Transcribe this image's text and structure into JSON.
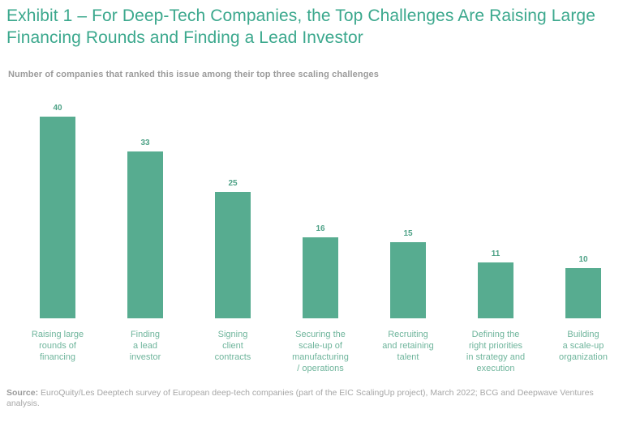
{
  "page": {
    "title": "Exhibit 1 – For Deep-Tech Companies, the Top Challenges Are Raising Large Financing Rounds and Finding a Lead Investor",
    "subtitle": "Number of companies that ranked this issue among their top three scaling challenges",
    "source_label": "Source:",
    "source_text": " EuroQuity/Les Deeptech survey of European deep-tech companies (part of the EIC ScalingUp project), March 2022; BCG and Deepwave Ventures analysis."
  },
  "colors": {
    "title_green": "#3BA88D",
    "bar_green": "#57AC90",
    "value_label_green": "#4EA287",
    "category_label_green": "#6FB59C",
    "subtitle_gray": "#9B9B9B",
    "source_gray": "#A7A7A7"
  },
  "chart_data": {
    "type": "bar",
    "title": "Number of companies that ranked this issue among their top three scaling challenges",
    "categories": [
      "Raising large rounds of financing",
      "Finding a lead investor",
      "Signing client contracts",
      "Securing the scale-up of manufacturing / operations",
      "Recruiting and retaining talent",
      "Defining the right priorities in strategy and execution",
      "Building a scale-up organization"
    ],
    "category_label_lines": [
      [
        "Raising large",
        "rounds of",
        "financing"
      ],
      [
        "Finding",
        "a lead",
        "investor"
      ],
      [
        "Signing",
        "client",
        "contracts"
      ],
      [
        "Securing the",
        "scale-up of",
        "manufacturing",
        "/ operations"
      ],
      [
        "Recruiting",
        "and retaining",
        "talent"
      ],
      [
        "Defining the",
        "right priorities",
        "in strategy and",
        "execution"
      ],
      [
        "Building",
        "a scale-up",
        "organization"
      ]
    ],
    "values": [
      40,
      33,
      25,
      16,
      15,
      11,
      10
    ],
    "value_labels_shown": true,
    "xlabel": "",
    "ylabel": "",
    "ylim": [
      0,
      40
    ],
    "grid": false,
    "legend": false,
    "bar_color": "#57AC90"
  }
}
